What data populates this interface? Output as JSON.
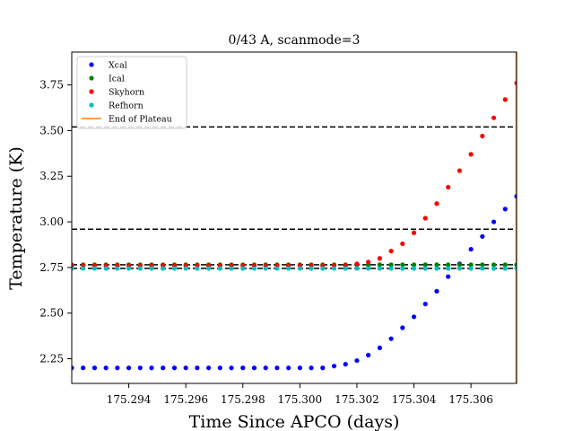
{
  "chart_data": {
    "type": "scatter",
    "title": "0/43 A, scanmode=3",
    "xlabel": "Time Since APCO (days)",
    "ylabel": "Temperature (K)",
    "xlim": [
      175.292,
      175.3076
    ],
    "ylim": [
      2.115,
      3.93
    ],
    "xticks": [
      175.294,
      175.296,
      175.298,
      175.3,
      175.302,
      175.304,
      175.306
    ],
    "xtick_labels": [
      "175.294",
      "175.296",
      "175.298",
      "175.300",
      "175.302",
      "175.304",
      "175.306"
    ],
    "yticks": [
      2.25,
      2.5,
      2.75,
      3.0,
      3.25,
      3.5,
      3.75
    ],
    "ytick_labels": [
      "2.25",
      "2.50",
      "2.75",
      "3.00",
      "3.25",
      "3.50",
      "3.75"
    ],
    "grid": false,
    "legend_position": "top-left",
    "x": [
      175.292,
      175.2924,
      175.2928,
      175.2932,
      175.2936,
      175.294,
      175.2944,
      175.2948,
      175.2952,
      175.2956,
      175.296,
      175.2964,
      175.2968,
      175.2972,
      175.2976,
      175.298,
      175.2984,
      175.2988,
      175.2992,
      175.2996,
      175.3,
      175.3004,
      175.3008,
      175.3012,
      175.3016,
      175.302,
      175.3024,
      175.3028,
      175.3032,
      175.3036,
      175.304,
      175.3044,
      175.3048,
      175.3052,
      175.3056,
      175.306,
      175.3064,
      175.3068,
      175.3072,
      175.3076
    ],
    "series": [
      {
        "name": "Xcal",
        "color": "#0000ff",
        "values": [
          2.2,
          2.2,
          2.2,
          2.2,
          2.2,
          2.2,
          2.2,
          2.2,
          2.2,
          2.2,
          2.2,
          2.2,
          2.2,
          2.2,
          2.2,
          2.2,
          2.2,
          2.2,
          2.2,
          2.2,
          2.2,
          2.2,
          2.2,
          2.21,
          2.22,
          2.24,
          2.27,
          2.31,
          2.36,
          2.42,
          2.48,
          2.55,
          2.62,
          2.7,
          2.77,
          2.85,
          2.92,
          3.0,
          3.07,
          3.14
        ]
      },
      {
        "name": "Ical",
        "color": "#008000",
        "values": [
          2.765,
          2.765,
          2.765,
          2.765,
          2.765,
          2.765,
          2.765,
          2.765,
          2.765,
          2.765,
          2.765,
          2.765,
          2.765,
          2.765,
          2.765,
          2.765,
          2.765,
          2.765,
          2.765,
          2.765,
          2.765,
          2.765,
          2.765,
          2.765,
          2.765,
          2.765,
          2.765,
          2.765,
          2.765,
          2.765,
          2.765,
          2.765,
          2.765,
          2.765,
          2.765,
          2.765,
          2.765,
          2.765,
          2.765,
          2.765
        ]
      },
      {
        "name": "Skyhorn",
        "color": "#ff0000",
        "values": [
          2.76,
          2.76,
          2.76,
          2.76,
          2.76,
          2.76,
          2.76,
          2.76,
          2.76,
          2.76,
          2.76,
          2.76,
          2.76,
          2.76,
          2.76,
          2.76,
          2.76,
          2.76,
          2.76,
          2.76,
          2.76,
          2.76,
          2.76,
          2.76,
          2.76,
          2.77,
          2.78,
          2.8,
          2.84,
          2.88,
          2.94,
          3.02,
          3.1,
          3.19,
          3.28,
          3.37,
          3.47,
          3.57,
          3.67,
          3.76
        ]
      },
      {
        "name": "Refhorn",
        "color": "#00bfbf",
        "values": [
          2.745,
          2.745,
          2.745,
          2.745,
          2.745,
          2.745,
          2.745,
          2.745,
          2.745,
          2.745,
          2.745,
          2.745,
          2.745,
          2.745,
          2.745,
          2.745,
          2.745,
          2.745,
          2.745,
          2.745,
          2.745,
          2.745,
          2.745,
          2.745,
          2.745,
          2.745,
          2.745,
          2.745,
          2.745,
          2.745,
          2.745,
          2.745,
          2.745,
          2.745,
          2.745,
          2.745,
          2.745,
          2.745,
          2.745,
          2.745
        ]
      }
    ],
    "horizontal_lines": [
      {
        "y": 3.52,
        "color": "#000000",
        "style": "dashed"
      },
      {
        "y": 2.96,
        "color": "#000000",
        "style": "dashed"
      },
      {
        "y": 2.765,
        "color": "#000000",
        "style": "dashed"
      },
      {
        "y": 2.745,
        "color": "#000000",
        "style": "dashed"
      }
    ],
    "vertical_lines": [
      {
        "name": "End of Plateau",
        "x": 175.3076,
        "color": "#ff7f0e"
      }
    ],
    "legend": [
      {
        "label": "Xcal",
        "color": "#0000ff",
        "marker": "dot"
      },
      {
        "label": "Ical",
        "color": "#008000",
        "marker": "dot"
      },
      {
        "label": "Skyhorn",
        "color": "#ff0000",
        "marker": "dot"
      },
      {
        "label": "Refhorn",
        "color": "#00bfbf",
        "marker": "dot"
      },
      {
        "label": "End of Plateau",
        "color": "#ff7f0e",
        "marker": "line"
      }
    ]
  }
}
